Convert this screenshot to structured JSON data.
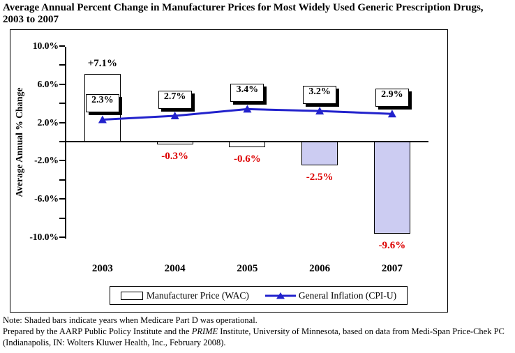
{
  "chart_data": {
    "type": "bar",
    "title": "Average Annual Percent Change in Manufacturer Prices for Most Widely Used Generic Prescription Drugs, 2003 to 2007",
    "categories": [
      "2003",
      "2004",
      "2005",
      "2006",
      "2007"
    ],
    "series": [
      {
        "name": "Manufacturer Price (WAC)",
        "type": "bar",
        "values": [
          7.1,
          -0.3,
          -0.6,
          -2.5,
          -9.6
        ],
        "labels": [
          "+7.1%",
          "-0.3%",
          "-0.6%",
          "-2.5%",
          "-9.6%"
        ],
        "shaded": [
          false,
          false,
          false,
          true,
          true
        ]
      },
      {
        "name": "General Inflation (CPI-U)",
        "type": "line",
        "values": [
          2.3,
          2.7,
          3.4,
          3.2,
          2.9
        ],
        "labels": [
          "2.3%",
          "2.7%",
          "3.4%",
          "3.2%",
          "2.9%"
        ]
      }
    ],
    "xlabel": "",
    "ylabel": "Average Annual % Change",
    "ylim": [
      -10,
      10
    ],
    "yticks": [
      {
        "value": 10,
        "label": "10.0%"
      },
      {
        "value": 6,
        "label": "6.0%"
      },
      {
        "value": 2,
        "label": "2.0%"
      },
      {
        "value": -2,
        "label": "-2.0%"
      },
      {
        "value": -6,
        "label": "-6.0%"
      },
      {
        "value": -10,
        "label": "-10.0%"
      }
    ],
    "yticks_minor": [
      8,
      4,
      0,
      -4,
      -8
    ],
    "grid": false,
    "legend_position": "bottom-inside"
  },
  "colors": {
    "bar_fill": "#FFFFFF",
    "bar_shaded_fill": "#CCCCF2",
    "bar_border": "#000000",
    "line": "#2222CC",
    "negative_label": "#DD0000",
    "positive_label": "#000000",
    "label_box_shadow": "#000000"
  },
  "notes": {
    "line1": "Note: Shaded bars indicate years when Medicare Part D was operational.",
    "line2_pre": "Prepared by the AARP Public Policy Institute and the ",
    "line2_italic": "PRIME",
    "line2_post": " Institute, University of Minnesota, based on data from Medi-Span Price-Chek PC (Indianapolis, IN: Wolters Kluwer Health, Inc., February 2008)."
  }
}
